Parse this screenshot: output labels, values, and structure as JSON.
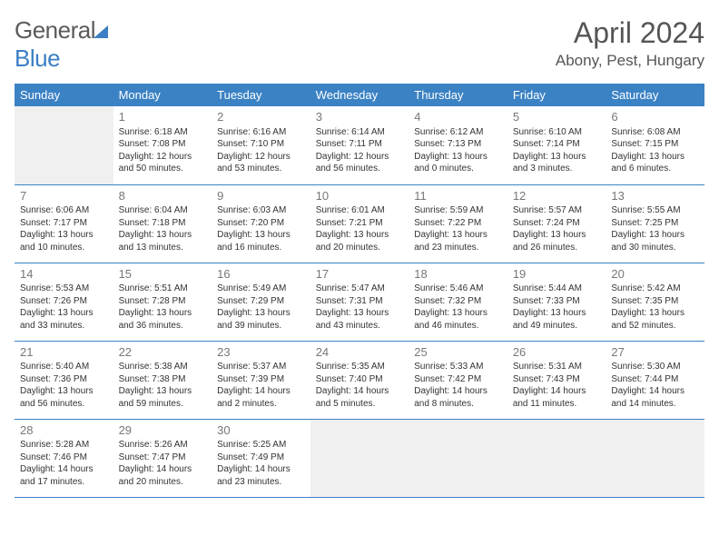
{
  "brand": {
    "part1": "General",
    "part2": "Blue"
  },
  "title": "April 2024",
  "location": "Abony, Pest, Hungary",
  "colors": {
    "header_blue": "#3b82c4",
    "logo_blue": "#3b7fc4",
    "text_gray": "#555",
    "cell_text": "#333",
    "daynum": "#777",
    "empty_bg": "#f0f0f0"
  },
  "weekdays": [
    "Sunday",
    "Monday",
    "Tuesday",
    "Wednesday",
    "Thursday",
    "Friday",
    "Saturday"
  ],
  "weeks": [
    [
      null,
      {
        "n": "1",
        "sr": "6:18 AM",
        "ss": "7:08 PM",
        "dl": "12 hours and 50 minutes."
      },
      {
        "n": "2",
        "sr": "6:16 AM",
        "ss": "7:10 PM",
        "dl": "12 hours and 53 minutes."
      },
      {
        "n": "3",
        "sr": "6:14 AM",
        "ss": "7:11 PM",
        "dl": "12 hours and 56 minutes."
      },
      {
        "n": "4",
        "sr": "6:12 AM",
        "ss": "7:13 PM",
        "dl": "13 hours and 0 minutes."
      },
      {
        "n": "5",
        "sr": "6:10 AM",
        "ss": "7:14 PM",
        "dl": "13 hours and 3 minutes."
      },
      {
        "n": "6",
        "sr": "6:08 AM",
        "ss": "7:15 PM",
        "dl": "13 hours and 6 minutes."
      }
    ],
    [
      {
        "n": "7",
        "sr": "6:06 AM",
        "ss": "7:17 PM",
        "dl": "13 hours and 10 minutes."
      },
      {
        "n": "8",
        "sr": "6:04 AM",
        "ss": "7:18 PM",
        "dl": "13 hours and 13 minutes."
      },
      {
        "n": "9",
        "sr": "6:03 AM",
        "ss": "7:20 PM",
        "dl": "13 hours and 16 minutes."
      },
      {
        "n": "10",
        "sr": "6:01 AM",
        "ss": "7:21 PM",
        "dl": "13 hours and 20 minutes."
      },
      {
        "n": "11",
        "sr": "5:59 AM",
        "ss": "7:22 PM",
        "dl": "13 hours and 23 minutes."
      },
      {
        "n": "12",
        "sr": "5:57 AM",
        "ss": "7:24 PM",
        "dl": "13 hours and 26 minutes."
      },
      {
        "n": "13",
        "sr": "5:55 AM",
        "ss": "7:25 PM",
        "dl": "13 hours and 30 minutes."
      }
    ],
    [
      {
        "n": "14",
        "sr": "5:53 AM",
        "ss": "7:26 PM",
        "dl": "13 hours and 33 minutes."
      },
      {
        "n": "15",
        "sr": "5:51 AM",
        "ss": "7:28 PM",
        "dl": "13 hours and 36 minutes."
      },
      {
        "n": "16",
        "sr": "5:49 AM",
        "ss": "7:29 PM",
        "dl": "13 hours and 39 minutes."
      },
      {
        "n": "17",
        "sr": "5:47 AM",
        "ss": "7:31 PM",
        "dl": "13 hours and 43 minutes."
      },
      {
        "n": "18",
        "sr": "5:46 AM",
        "ss": "7:32 PM",
        "dl": "13 hours and 46 minutes."
      },
      {
        "n": "19",
        "sr": "5:44 AM",
        "ss": "7:33 PM",
        "dl": "13 hours and 49 minutes."
      },
      {
        "n": "20",
        "sr": "5:42 AM",
        "ss": "7:35 PM",
        "dl": "13 hours and 52 minutes."
      }
    ],
    [
      {
        "n": "21",
        "sr": "5:40 AM",
        "ss": "7:36 PM",
        "dl": "13 hours and 56 minutes."
      },
      {
        "n": "22",
        "sr": "5:38 AM",
        "ss": "7:38 PM",
        "dl": "13 hours and 59 minutes."
      },
      {
        "n": "23",
        "sr": "5:37 AM",
        "ss": "7:39 PM",
        "dl": "14 hours and 2 minutes."
      },
      {
        "n": "24",
        "sr": "5:35 AM",
        "ss": "7:40 PM",
        "dl": "14 hours and 5 minutes."
      },
      {
        "n": "25",
        "sr": "5:33 AM",
        "ss": "7:42 PM",
        "dl": "14 hours and 8 minutes."
      },
      {
        "n": "26",
        "sr": "5:31 AM",
        "ss": "7:43 PM",
        "dl": "14 hours and 11 minutes."
      },
      {
        "n": "27",
        "sr": "5:30 AM",
        "ss": "7:44 PM",
        "dl": "14 hours and 14 minutes."
      }
    ],
    [
      {
        "n": "28",
        "sr": "5:28 AM",
        "ss": "7:46 PM",
        "dl": "14 hours and 17 minutes."
      },
      {
        "n": "29",
        "sr": "5:26 AM",
        "ss": "7:47 PM",
        "dl": "14 hours and 20 minutes."
      },
      {
        "n": "30",
        "sr": "5:25 AM",
        "ss": "7:49 PM",
        "dl": "14 hours and 23 minutes."
      },
      null,
      null,
      null,
      null
    ]
  ],
  "labels": {
    "sunrise": "Sunrise:",
    "sunset": "Sunset:",
    "daylight": "Daylight:"
  }
}
